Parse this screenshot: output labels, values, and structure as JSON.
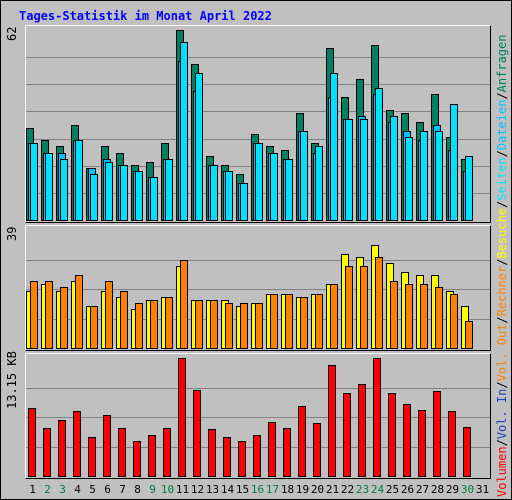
{
  "title": "Tages-Statistik im Monat April 2022",
  "colors": {
    "anfragen": "#008060",
    "dateien": "#00c0ff",
    "seiten": "#00e0ff",
    "besuche": "#ffff00",
    "rechner": "#ff8000",
    "vol_out": "#ff8000",
    "vol_in": "#2040c0",
    "volumen": "#ff0000",
    "weekend_label": "#008040",
    "background": "#c0c0c0",
    "gridline": "#808080"
  },
  "chart_data": [
    {
      "type": "bar",
      "categories": [
        "1",
        "2",
        "3",
        "4",
        "5",
        "6",
        "7",
        "8",
        "9",
        "10",
        "11",
        "12",
        "13",
        "14",
        "15",
        "16",
        "17",
        "18",
        "19",
        "20",
        "21",
        "22",
        "23",
        "24",
        "25",
        "26",
        "27",
        "28",
        "29",
        "30",
        "31"
      ],
      "y_max_label": "62",
      "ylim": [
        0,
        62
      ],
      "grid": true,
      "right_labels": [
        "Anfragen",
        "Dateien",
        "Seiten"
      ],
      "series": [
        {
          "name": "Anfragen",
          "values": [
            30,
            26,
            24,
            31,
            17,
            24,
            22,
            18,
            19,
            25,
            62,
            51,
            21,
            18,
            15,
            28,
            24,
            23,
            35,
            25,
            56,
            40,
            46,
            57,
            36,
            35,
            32,
            41,
            27,
            20,
            0
          ]
        },
        {
          "name": "Dateien",
          "values": [
            25,
            22,
            22,
            26,
            17,
            20,
            18,
            16,
            14,
            20,
            52,
            42,
            18,
            16,
            12,
            25,
            22,
            20,
            29,
            22,
            40,
            33,
            34,
            41,
            32,
            29,
            26,
            31,
            23,
            16,
            0
          ]
        },
        {
          "name": "Seiten",
          "values": [
            25,
            22,
            20,
            26,
            15,
            19,
            18,
            16,
            14,
            20,
            58,
            48,
            18,
            16,
            12,
            25,
            22,
            20,
            29,
            24,
            48,
            33,
            33,
            43,
            34,
            27,
            29,
            29,
            38,
            21,
            0
          ]
        }
      ]
    },
    {
      "type": "bar",
      "categories": [
        "1",
        "2",
        "3",
        "4",
        "5",
        "6",
        "7",
        "8",
        "9",
        "10",
        "11",
        "12",
        "13",
        "14",
        "15",
        "16",
        "17",
        "18",
        "19",
        "20",
        "21",
        "22",
        "23",
        "24",
        "25",
        "26",
        "27",
        "28",
        "29",
        "30",
        "31"
      ],
      "y_max_label": "39",
      "ylim": [
        0,
        39
      ],
      "grid": true,
      "right_labels": [
        "Besuche",
        "Rechner",
        "Vol. Out"
      ],
      "series": [
        {
          "name": "Besuche",
          "values": [
            19,
            21,
            19,
            22,
            14,
            19,
            17,
            13,
            16,
            17,
            27,
            16,
            16,
            16,
            14,
            15,
            18,
            18,
            17,
            18,
            21,
            31,
            30,
            34,
            28,
            25,
            24,
            24,
            19,
            14,
            0
          ]
        },
        {
          "name": "Rechner",
          "values": [
            22,
            22,
            20,
            24,
            14,
            22,
            19,
            15,
            16,
            17,
            29,
            16,
            16,
            15,
            15,
            15,
            18,
            18,
            17,
            18,
            21,
            27,
            27,
            30,
            22,
            21,
            21,
            20,
            18,
            9,
            0
          ]
        }
      ]
    },
    {
      "type": "bar",
      "categories": [
        "1",
        "2",
        "3",
        "4",
        "5",
        "6",
        "7",
        "8",
        "9",
        "10",
        "11",
        "12",
        "13",
        "14",
        "15",
        "16",
        "17",
        "18",
        "19",
        "20",
        "21",
        "22",
        "23",
        "24",
        "25",
        "26",
        "27",
        "28",
        "29",
        "30",
        "31"
      ],
      "y_max_label": "13.15 KB",
      "ylim": [
        0,
        13.15
      ],
      "grid": true,
      "right_labels": [
        "Volumen",
        "Vol. In"
      ],
      "series": [
        {
          "name": "Volumen",
          "values": [
            7.6,
            5.4,
            6.2,
            7.2,
            4.3,
            6.8,
            5.4,
            3.9,
            4.6,
            5.3,
            13.15,
            9.6,
            5.2,
            4.3,
            3.9,
            4.6,
            6.0,
            5.4,
            7.8,
            5.9,
            12.4,
            9.3,
            10.3,
            13.15,
            9.2,
            8.0,
            7.3,
            9.5,
            7.2,
            5.5,
            0
          ]
        }
      ]
    }
  ],
  "x_labels": [
    {
      "text": "1",
      "weekend": false
    },
    {
      "text": "2",
      "weekend": true
    },
    {
      "text": "3",
      "weekend": true
    },
    {
      "text": "4",
      "weekend": false
    },
    {
      "text": "5",
      "weekend": false
    },
    {
      "text": "6",
      "weekend": false
    },
    {
      "text": "7",
      "weekend": false
    },
    {
      "text": "8",
      "weekend": false
    },
    {
      "text": "9",
      "weekend": true
    },
    {
      "text": "10",
      "weekend": true
    },
    {
      "text": "11",
      "weekend": false
    },
    {
      "text": "12",
      "weekend": false
    },
    {
      "text": "13",
      "weekend": false
    },
    {
      "text": "14",
      "weekend": false
    },
    {
      "text": "15",
      "weekend": false
    },
    {
      "text": "16",
      "weekend": true
    },
    {
      "text": "17",
      "weekend": true
    },
    {
      "text": "18",
      "weekend": false
    },
    {
      "text": "19",
      "weekend": false
    },
    {
      "text": "20",
      "weekend": false
    },
    {
      "text": "21",
      "weekend": false
    },
    {
      "text": "22",
      "weekend": false
    },
    {
      "text": "23",
      "weekend": true
    },
    {
      "text": "24",
      "weekend": true
    },
    {
      "text": "25",
      "weekend": false
    },
    {
      "text": "26",
      "weekend": false
    },
    {
      "text": "27",
      "weekend": false
    },
    {
      "text": "28",
      "weekend": false
    },
    {
      "text": "29",
      "weekend": false
    },
    {
      "text": "30",
      "weekend": true
    },
    {
      "text": "31",
      "weekend": false
    }
  ]
}
